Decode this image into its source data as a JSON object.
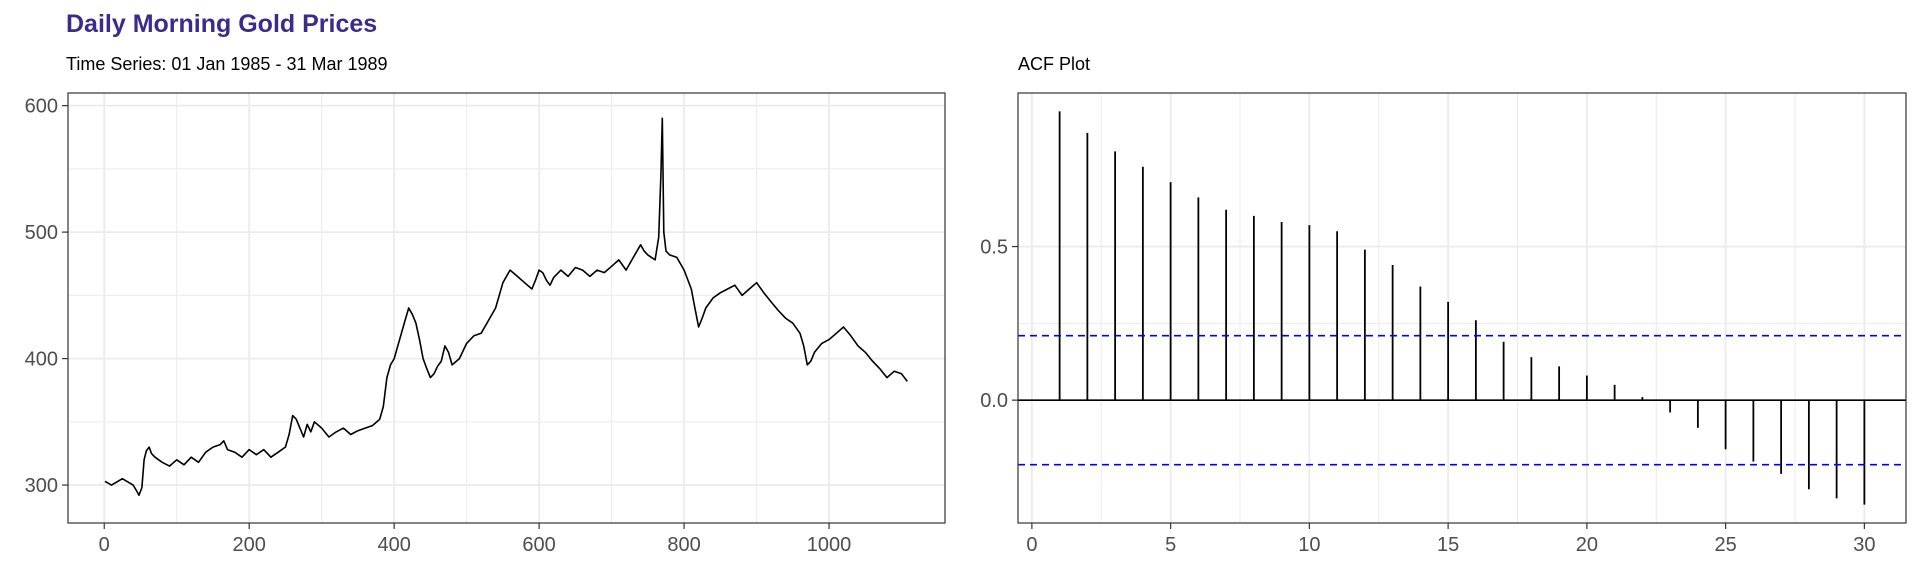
{
  "title": "Daily Morning Gold Prices",
  "colors": {
    "title": "#3f2a8c",
    "series": "#000000",
    "ci_line": "#0000ff",
    "grid": "#ebebeb",
    "frame": "#333333"
  },
  "chart_data": [
    {
      "type": "line",
      "subtitle": "Time Series: 01 Jan 1985 - 31 Mar 1989",
      "xlabel": "",
      "ylabel": "",
      "xlim": [
        -50,
        1160
      ],
      "ylim": [
        270,
        610
      ],
      "x_ticks": [
        "0",
        "200",
        "400",
        "600",
        "800",
        "1000"
      ],
      "y_ticks": [
        "300",
        "400",
        "500",
        "600"
      ],
      "grid": true,
      "series": [
        {
          "x": [
            1,
            10,
            25,
            40,
            45,
            48,
            52,
            55,
            58,
            62,
            65,
            70,
            80,
            90,
            100,
            110,
            120,
            130,
            140,
            150,
            160,
            165,
            170,
            180,
            190,
            200,
            210,
            220,
            230,
            240,
            250,
            255,
            260,
            265,
            270,
            275,
            280,
            285,
            290,
            300,
            310,
            320,
            330,
            340,
            350,
            360,
            370,
            380,
            385,
            390,
            395,
            400,
            405,
            410,
            415,
            420,
            425,
            430,
            435,
            440,
            445,
            450,
            455,
            460,
            465,
            470,
            475,
            480,
            490,
            500,
            510,
            520,
            530,
            540,
            550,
            560,
            570,
            580,
            590,
            595,
            600,
            605,
            610,
            615,
            620,
            630,
            640,
            650,
            660,
            670,
            680,
            690,
            700,
            710,
            720,
            730,
            740,
            745,
            750,
            755,
            760,
            765,
            768,
            770,
            772,
            775,
            780,
            790,
            800,
            810,
            815,
            820,
            825,
            830,
            840,
            850,
            860,
            870,
            880,
            890,
            900,
            910,
            920,
            930,
            940,
            950,
            960,
            965,
            970,
            975,
            980,
            990,
            1000,
            1010,
            1020,
            1030,
            1040,
            1050,
            1060,
            1070,
            1080,
            1090,
            1100,
            1108
          ],
          "y": [
            303,
            300,
            305,
            300,
            295,
            292,
            298,
            320,
            327,
            330,
            325,
            322,
            318,
            315,
            320,
            316,
            322,
            318,
            326,
            330,
            332,
            335,
            328,
            326,
            322,
            328,
            324,
            328,
            322,
            326,
            330,
            340,
            355,
            352,
            345,
            338,
            348,
            342,
            350,
            345,
            338,
            342,
            345,
            340,
            343,
            345,
            347,
            352,
            362,
            385,
            395,
            400,
            410,
            420,
            430,
            440,
            435,
            428,
            415,
            400,
            392,
            385,
            388,
            394,
            398,
            410,
            405,
            395,
            400,
            412,
            418,
            420,
            430,
            440,
            460,
            470,
            465,
            460,
            455,
            462,
            470,
            468,
            462,
            458,
            464,
            470,
            465,
            472,
            470,
            465,
            470,
            468,
            473,
            478,
            470,
            480,
            490,
            485,
            482,
            480,
            478,
            496,
            545,
            590,
            500,
            485,
            482,
            480,
            470,
            455,
            440,
            425,
            432,
            440,
            448,
            452,
            455,
            458,
            450,
            455,
            460,
            452,
            445,
            438,
            432,
            428,
            420,
            410,
            395,
            398,
            405,
            412,
            415,
            420,
            425,
            418,
            410,
            405,
            398,
            392,
            385,
            390,
            388,
            382
          ]
        }
      ]
    },
    {
      "type": "bar",
      "subtitle": "ACF Plot",
      "xlabel": "",
      "ylabel": "",
      "xlim": [
        -0.5,
        31.5
      ],
      "ylim": [
        -0.4,
        1.0
      ],
      "x_ticks": [
        "0",
        "5",
        "10",
        "15",
        "20",
        "25",
        "30"
      ],
      "y_ticks": [
        "0.0",
        "0.5"
      ],
      "grid": true,
      "confidence_bound": 0.21,
      "lags": [
        1,
        2,
        3,
        4,
        5,
        6,
        7,
        8,
        9,
        10,
        11,
        12,
        13,
        14,
        15,
        16,
        17,
        18,
        19,
        20,
        21,
        22,
        23,
        24,
        25,
        26,
        27,
        28,
        29,
        30
      ],
      "values": [
        0.94,
        0.87,
        0.81,
        0.76,
        0.71,
        0.66,
        0.62,
        0.6,
        0.58,
        0.57,
        0.55,
        0.49,
        0.44,
        0.37,
        0.32,
        0.26,
        0.19,
        0.14,
        0.11,
        0.08,
        0.05,
        0.01,
        -0.04,
        -0.09,
        -0.16,
        -0.2,
        -0.24,
        -0.29,
        -0.32,
        -0.34
      ]
    }
  ]
}
